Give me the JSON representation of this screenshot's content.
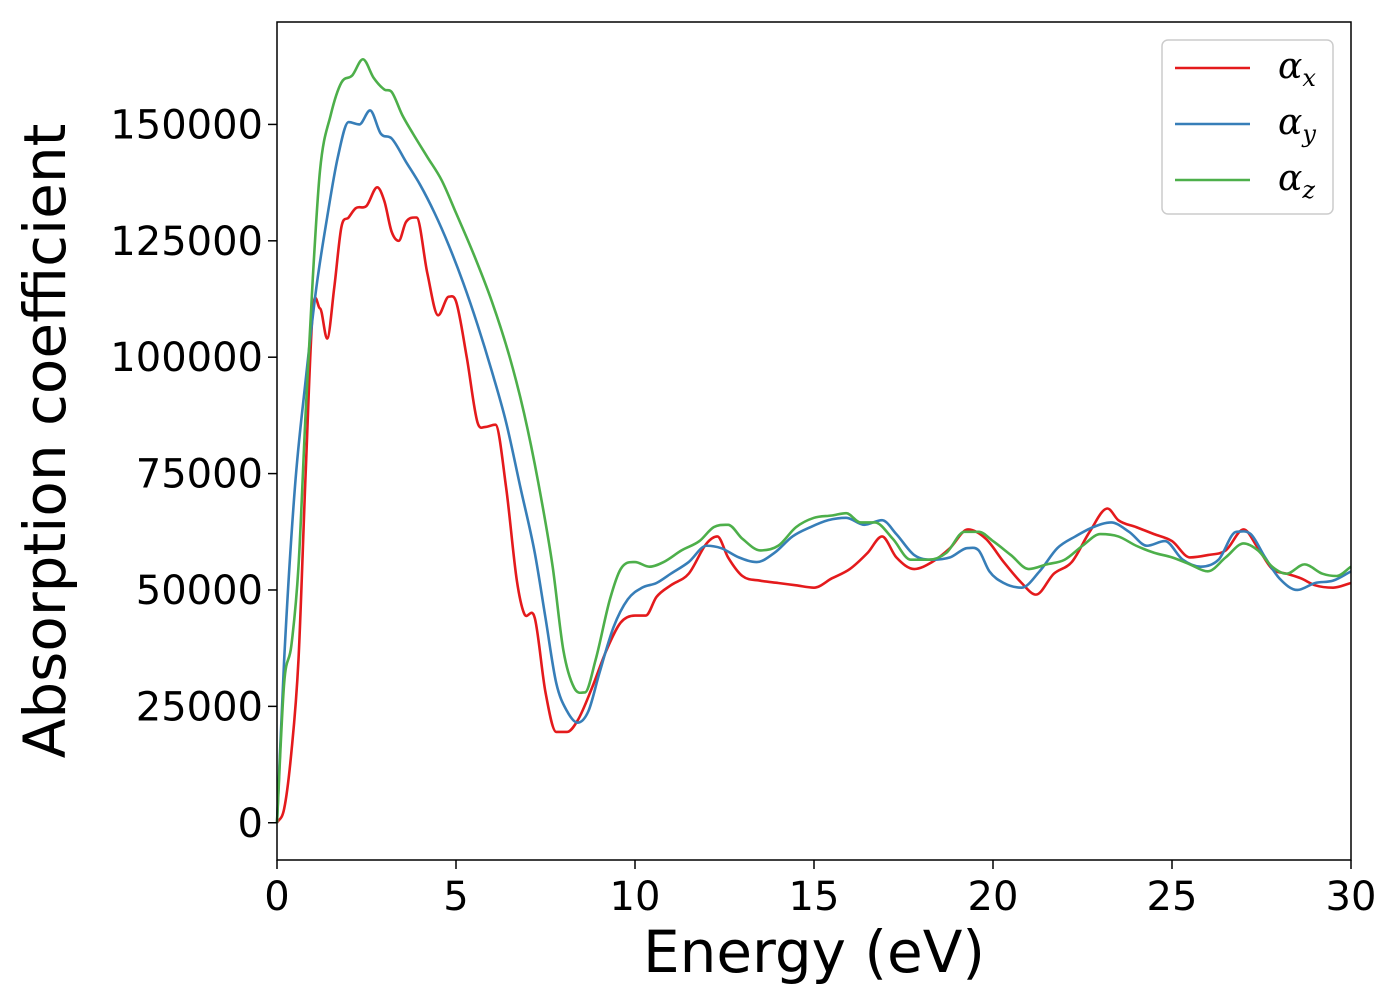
{
  "chart_data": {
    "type": "line",
    "title": "",
    "xlabel": "Energy (eV)",
    "ylabel": "Absorption coefficient",
    "xlim": [
      0,
      30
    ],
    "ylim": [
      -8000,
      172000
    ],
    "xticks": [
      0,
      5,
      10,
      15,
      20,
      25,
      30
    ],
    "xtick_labels": [
      "0",
      "5",
      "10",
      "15",
      "20",
      "25",
      "30"
    ],
    "yticks": [
      0,
      25000,
      50000,
      75000,
      100000,
      125000,
      150000
    ],
    "ytick_labels": [
      "0",
      "25000",
      "50000",
      "75000",
      "100000",
      "125000",
      "150000"
    ],
    "grid": false,
    "legend_position": "top-right",
    "series": [
      {
        "name": "αx",
        "symbol": "α",
        "subscript": "x",
        "color": "#e41a1c",
        "points": [
          [
            0,
            0
          ],
          [
            0.2,
            3000
          ],
          [
            0.4,
            15000
          ],
          [
            0.6,
            35000
          ],
          [
            0.8,
            75000
          ],
          [
            1.0,
            110000
          ],
          [
            1.2,
            110500
          ],
          [
            1.4,
            104000
          ],
          [
            1.6,
            115000
          ],
          [
            1.8,
            128000
          ],
          [
            2.0,
            130000
          ],
          [
            2.2,
            132000
          ],
          [
            2.5,
            132500
          ],
          [
            2.8,
            136500
          ],
          [
            3.0,
            133500
          ],
          [
            3.2,
            127000
          ],
          [
            3.4,
            125000
          ],
          [
            3.6,
            129000
          ],
          [
            3.9,
            130000
          ],
          [
            4.2,
            118000
          ],
          [
            4.5,
            109000
          ],
          [
            4.8,
            113000
          ],
          [
            5.0,
            112000
          ],
          [
            5.3,
            100000
          ],
          [
            5.6,
            86000
          ],
          [
            5.8,
            85000
          ],
          [
            6.1,
            85500
          ],
          [
            6.4,
            72000
          ],
          [
            6.7,
            52000
          ],
          [
            6.9,
            45000
          ],
          [
            7.2,
            44000
          ],
          [
            7.5,
            28000
          ],
          [
            7.8,
            19500
          ],
          [
            8.1,
            19500
          ],
          [
            8.4,
            22000
          ],
          [
            8.8,
            29000
          ],
          [
            9.2,
            37000
          ],
          [
            9.6,
            43000
          ],
          [
            10.0,
            44500
          ],
          [
            10.3,
            44500
          ],
          [
            10.6,
            48500
          ],
          [
            11.0,
            51000
          ],
          [
            11.5,
            53500
          ],
          [
            12.0,
            60000
          ],
          [
            12.3,
            61500
          ],
          [
            12.6,
            57000
          ],
          [
            13.0,
            53000
          ],
          [
            13.5,
            52000
          ],
          [
            14.0,
            51500
          ],
          [
            14.5,
            51000
          ],
          [
            15.0,
            50500
          ],
          [
            15.5,
            52500
          ],
          [
            16.0,
            54500
          ],
          [
            16.5,
            58000
          ],
          [
            16.9,
            61500
          ],
          [
            17.3,
            57000
          ],
          [
            17.8,
            54500
          ],
          [
            18.3,
            56000
          ],
          [
            18.8,
            59000
          ],
          [
            19.3,
            63000
          ],
          [
            19.8,
            61000
          ],
          [
            20.3,
            56000
          ],
          [
            20.8,
            51500
          ],
          [
            21.2,
            49000
          ],
          [
            21.7,
            53500
          ],
          [
            22.2,
            56000
          ],
          [
            22.7,
            62500
          ],
          [
            23.2,
            67500
          ],
          [
            23.5,
            65000
          ],
          [
            24.0,
            63500
          ],
          [
            24.5,
            62000
          ],
          [
            25.0,
            60500
          ],
          [
            25.5,
            57000
          ],
          [
            26.0,
            57500
          ],
          [
            26.5,
            58500
          ],
          [
            27.0,
            63000
          ],
          [
            27.4,
            59000
          ],
          [
            27.8,
            54500
          ],
          [
            28.2,
            53500
          ],
          [
            28.6,
            52500
          ],
          [
            29.0,
            51000
          ],
          [
            29.5,
            50500
          ],
          [
            30.0,
            51500
          ]
        ]
      },
      {
        "name": "αy",
        "symbol": "α",
        "subscript": "y",
        "color": "#377eb8",
        "points": [
          [
            0,
            0
          ],
          [
            0.2,
            35000
          ],
          [
            0.5,
            72000
          ],
          [
            0.8,
            95000
          ],
          [
            1.1,
            115000
          ],
          [
            1.4,
            130000
          ],
          [
            1.7,
            143000
          ],
          [
            2.0,
            150500
          ],
          [
            2.3,
            150000
          ],
          [
            2.6,
            153000
          ],
          [
            2.9,
            148000
          ],
          [
            3.2,
            147000
          ],
          [
            3.6,
            142000
          ],
          [
            4.0,
            137000
          ],
          [
            4.4,
            131000
          ],
          [
            4.8,
            124000
          ],
          [
            5.2,
            116000
          ],
          [
            5.6,
            107000
          ],
          [
            6.0,
            97000
          ],
          [
            6.4,
            86000
          ],
          [
            6.8,
            72000
          ],
          [
            7.2,
            58000
          ],
          [
            7.5,
            44000
          ],
          [
            7.8,
            30000
          ],
          [
            8.1,
            24000
          ],
          [
            8.4,
            21500
          ],
          [
            8.7,
            24000
          ],
          [
            9.0,
            32000
          ],
          [
            9.4,
            42000
          ],
          [
            9.8,
            48000
          ],
          [
            10.2,
            50500
          ],
          [
            10.6,
            51500
          ],
          [
            11.0,
            53500
          ],
          [
            11.5,
            56000
          ],
          [
            12.0,
            59500
          ],
          [
            12.4,
            59000
          ],
          [
            12.9,
            57000
          ],
          [
            13.4,
            56000
          ],
          [
            13.9,
            58000
          ],
          [
            14.4,
            61500
          ],
          [
            14.9,
            63500
          ],
          [
            15.4,
            65000
          ],
          [
            15.9,
            65500
          ],
          [
            16.4,
            64000
          ],
          [
            16.9,
            65000
          ],
          [
            17.3,
            62000
          ],
          [
            17.8,
            57500
          ],
          [
            18.3,
            56500
          ],
          [
            18.8,
            57000
          ],
          [
            19.3,
            59000
          ],
          [
            19.6,
            58500
          ],
          [
            19.9,
            54000
          ],
          [
            20.3,
            51500
          ],
          [
            20.8,
            50500
          ],
          [
            21.3,
            54000
          ],
          [
            21.8,
            59000
          ],
          [
            22.3,
            61500
          ],
          [
            22.8,
            63500
          ],
          [
            23.3,
            64500
          ],
          [
            23.8,
            62500
          ],
          [
            24.3,
            59500
          ],
          [
            24.8,
            60500
          ],
          [
            25.3,
            56500
          ],
          [
            25.8,
            55000
          ],
          [
            26.3,
            56500
          ],
          [
            26.8,
            62500
          ],
          [
            27.2,
            62000
          ],
          [
            27.6,
            57000
          ],
          [
            28.0,
            52500
          ],
          [
            28.5,
            50000
          ],
          [
            29.0,
            51500
          ],
          [
            29.5,
            52000
          ],
          [
            30.0,
            54000
          ]
        ]
      },
      {
        "name": "αz",
        "symbol": "α",
        "subscript": "z",
        "color": "#4daf4a",
        "points": [
          [
            0,
            0
          ],
          [
            0.2,
            30000
          ],
          [
            0.4,
            38000
          ],
          [
            0.6,
            55000
          ],
          [
            0.8,
            88000
          ],
          [
            1.0,
            117000
          ],
          [
            1.2,
            140000
          ],
          [
            1.5,
            152000
          ],
          [
            1.8,
            159000
          ],
          [
            2.1,
            160500
          ],
          [
            2.4,
            164000
          ],
          [
            2.7,
            160000
          ],
          [
            3.0,
            157500
          ],
          [
            3.2,
            157000
          ],
          [
            3.5,
            152000
          ],
          [
            3.8,
            148000
          ],
          [
            4.2,
            143000
          ],
          [
            4.6,
            138000
          ],
          [
            5.0,
            131000
          ],
          [
            5.5,
            122000
          ],
          [
            6.0,
            112000
          ],
          [
            6.5,
            100000
          ],
          [
            6.9,
            88000
          ],
          [
            7.3,
            73000
          ],
          [
            7.7,
            55000
          ],
          [
            8.0,
            37000
          ],
          [
            8.3,
            29000
          ],
          [
            8.6,
            28000
          ],
          [
            8.9,
            35000
          ],
          [
            9.3,
            48000
          ],
          [
            9.6,
            54500
          ],
          [
            10.0,
            56000
          ],
          [
            10.4,
            55000
          ],
          [
            10.8,
            56000
          ],
          [
            11.3,
            58500
          ],
          [
            11.8,
            60500
          ],
          [
            12.2,
            63500
          ],
          [
            12.6,
            64000
          ],
          [
            13.0,
            61000
          ],
          [
            13.5,
            58500
          ],
          [
            14.0,
            59500
          ],
          [
            14.5,
            63500
          ],
          [
            15.0,
            65500
          ],
          [
            15.5,
            66000
          ],
          [
            15.9,
            66500
          ],
          [
            16.3,
            64500
          ],
          [
            16.7,
            64500
          ],
          [
            17.2,
            61000
          ],
          [
            17.7,
            56500
          ],
          [
            18.2,
            56500
          ],
          [
            18.7,
            58000
          ],
          [
            19.2,
            62500
          ],
          [
            19.6,
            62500
          ],
          [
            20.0,
            60500
          ],
          [
            20.5,
            57500
          ],
          [
            21.0,
            54500
          ],
          [
            21.5,
            55500
          ],
          [
            22.0,
            56500
          ],
          [
            22.5,
            59500
          ],
          [
            23.0,
            62000
          ],
          [
            23.5,
            61500
          ],
          [
            24.0,
            59500
          ],
          [
            24.5,
            58000
          ],
          [
            25.0,
            57000
          ],
          [
            25.5,
            55500
          ],
          [
            26.0,
            54000
          ],
          [
            26.5,
            57000
          ],
          [
            27.0,
            60000
          ],
          [
            27.4,
            58500
          ],
          [
            27.8,
            55000
          ],
          [
            28.2,
            53500
          ],
          [
            28.7,
            55500
          ],
          [
            29.2,
            53500
          ],
          [
            29.6,
            53000
          ],
          [
            30.0,
            55000
          ]
        ]
      }
    ]
  }
}
